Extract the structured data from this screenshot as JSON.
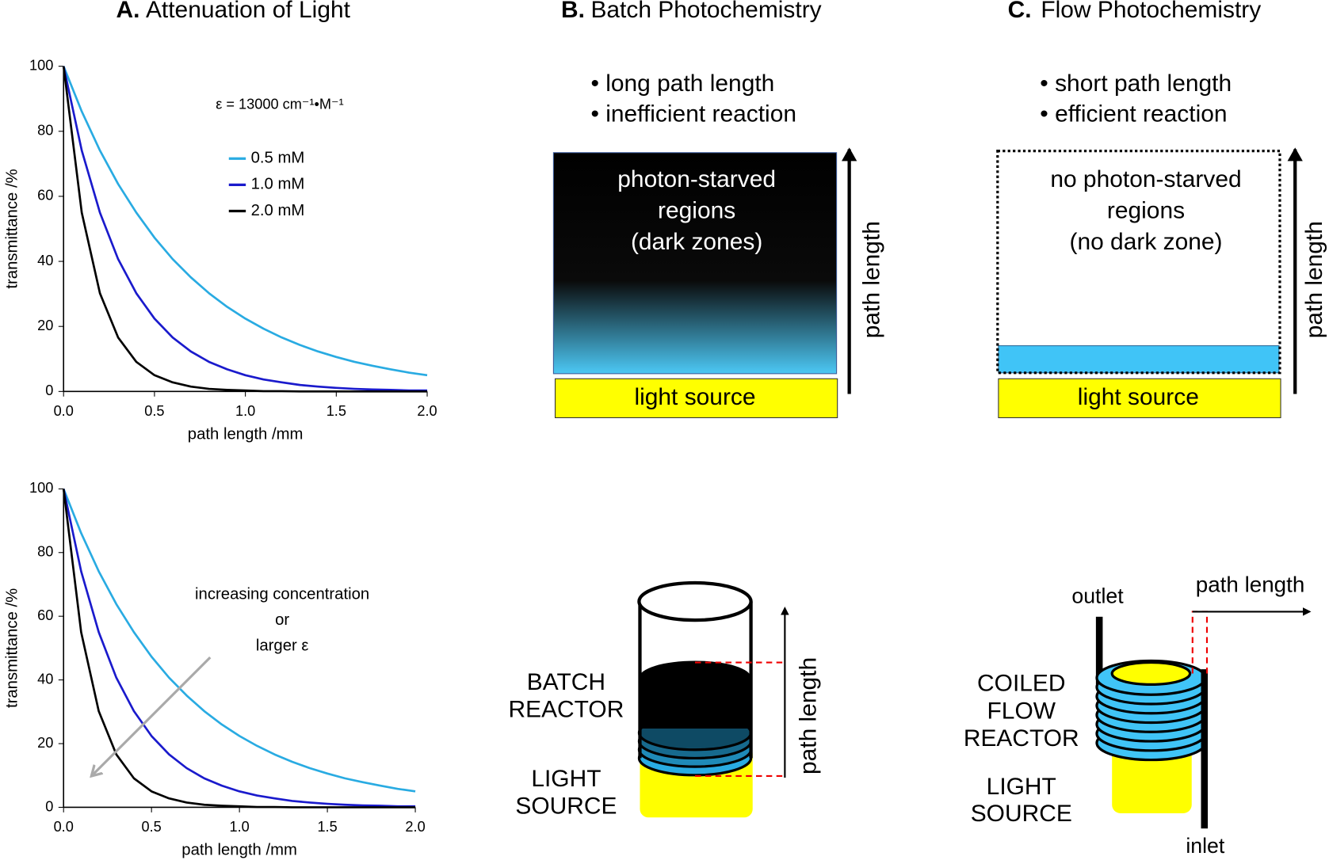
{
  "chart_data": [
    {
      "type": "line",
      "panel": "A.",
      "title": "Attenuation of Light",
      "x_label": "path length /mm",
      "y_label": "transmittance /%",
      "note": "ε = 13000 cm⁻¹•M⁻¹",
      "legend": true,
      "x": [
        0,
        0.1,
        0.2,
        0.3,
        0.4,
        0.5,
        0.6,
        0.7,
        0.8,
        0.9,
        1.0,
        1.1,
        1.2,
        1.3,
        1.4,
        1.5,
        1.6,
        1.7,
        1.8,
        1.9,
        2.0
      ],
      "series": [
        {
          "name": "0.5 mM",
          "color": "#29abe2",
          "values": [
            100,
            86.1,
            74.1,
            63.8,
            55.0,
            47.3,
            40.7,
            35.1,
            30.2,
            26.0,
            22.4,
            19.3,
            16.6,
            14.3,
            12.3,
            10.6,
            9.1,
            7.9,
            6.8,
            5.8,
            5.0
          ]
        },
        {
          "name": "1.0 mM",
          "color": "#1a1acc",
          "values": [
            100,
            74.1,
            55.0,
            40.7,
            30.2,
            22.4,
            16.6,
            12.3,
            9.1,
            6.8,
            5.0,
            3.7,
            2.8,
            2.0,
            1.5,
            1.1,
            0.8,
            0.6,
            0.5,
            0.3,
            0.3
          ]
        },
        {
          "name": "2.0 mM",
          "color": "#000000",
          "values": [
            100,
            55.0,
            30.2,
            16.6,
            9.1,
            5.0,
            2.8,
            1.5,
            0.8,
            0.5,
            0.3,
            0.1,
            0.1,
            0,
            0,
            0,
            0,
            0,
            0,
            0,
            0
          ]
        }
      ],
      "xlim": [
        0,
        2
      ],
      "ylim": [
        0,
        100
      ],
      "xticks": [
        {
          "value": 0,
          "label": "0.0"
        },
        0.5,
        {
          "value": 1,
          "label": "1.0"
        },
        1.5,
        {
          "value": 2,
          "label": "2.0"
        }
      ],
      "yticks": [
        0,
        20,
        40,
        60,
        80,
        100
      ]
    },
    {
      "type": "line",
      "x_label": "path length /mm",
      "y_label": "transmittance /%",
      "annotation": [
        "increasing concentration",
        "or",
        "larger ε"
      ],
      "legend": false,
      "x": [
        0,
        0.1,
        0.2,
        0.3,
        0.4,
        0.5,
        0.6,
        0.7,
        0.8,
        0.9,
        1.0,
        1.1,
        1.2,
        1.3,
        1.4,
        1.5,
        1.6,
        1.7,
        1.8,
        1.9,
        2.0
      ],
      "series": [
        {
          "color": "#29abe2",
          "values": [
            100,
            86.1,
            74.1,
            63.8,
            55.0,
            47.3,
            40.7,
            35.1,
            30.2,
            26.0,
            22.4,
            19.3,
            16.6,
            14.3,
            12.3,
            10.6,
            9.1,
            7.9,
            6.8,
            5.8,
            5.0
          ]
        },
        {
          "color": "#1a1acc",
          "values": [
            100,
            74.1,
            55.0,
            40.7,
            30.2,
            22.4,
            16.6,
            12.3,
            9.1,
            6.8,
            5.0,
            3.7,
            2.8,
            2.0,
            1.5,
            1.1,
            0.8,
            0.6,
            0.5,
            0.3,
            0.3
          ]
        },
        {
          "color": "#000000",
          "values": [
            100,
            55.0,
            30.2,
            16.6,
            9.1,
            5.0,
            2.8,
            1.5,
            0.8,
            0.5,
            0.3,
            0.1,
            0.1,
            0,
            0,
            0,
            0,
            0,
            0,
            0,
            0
          ]
        }
      ],
      "xlim": [
        0,
        2
      ],
      "ylim": [
        0,
        100
      ],
      "xticks": [
        {
          "value": 0,
          "label": "0.0"
        },
        0.5,
        {
          "value": 1,
          "label": "1.0"
        },
        1.5,
        {
          "value": 2,
          "label": "2.0"
        }
      ],
      "yticks": [
        0,
        20,
        40,
        60,
        80,
        100
      ]
    }
  ],
  "panels": [
    {
      "label": "B.",
      "title": "Batch Photochemistry",
      "bullets": [
        "• long path length",
        "• inefficient reaction"
      ],
      "region": [
        "photon-starved",
        "regions",
        "(dark zones)"
      ],
      "source": "light source",
      "axis": "path length",
      "reactor": [
        "BATCH",
        "REACTOR"
      ],
      "lamp": [
        "LIGHT",
        "SOURCE"
      ],
      "reactor_axis": "path length"
    },
    {
      "label": "C.",
      "title": "Flow Photochemistry",
      "bullets": [
        "• short path length",
        "• efficient reaction"
      ],
      "region": [
        "no photon-starved",
        "regions",
        "(no dark zone)"
      ],
      "source": "light source",
      "axis": "path length",
      "reactor": [
        "COILED",
        "FLOW",
        "REACTOR"
      ],
      "lamp": [
        "LIGHT",
        "SOURCE"
      ],
      "reactor_axis": "path length",
      "outlet": "outlet",
      "inlet": "inlet"
    }
  ]
}
